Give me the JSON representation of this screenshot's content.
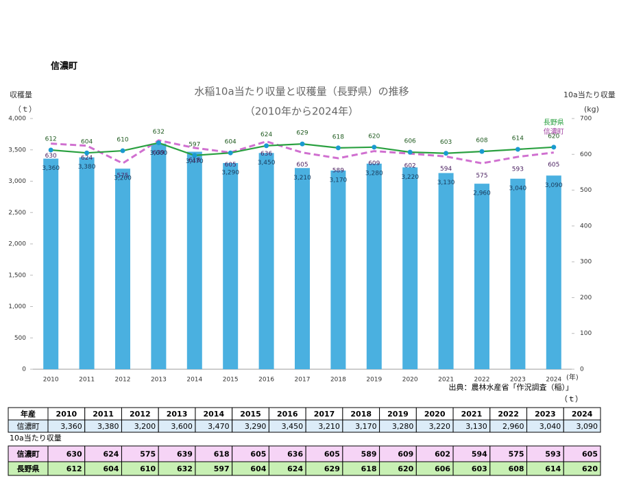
{
  "heading": "信濃町",
  "chart_data": {
    "type": "bar",
    "title": "水稲10a当たり収量と収穫量（長野県）の推移",
    "subtitle": "（2010年から2024年）",
    "y_label": "収穫量",
    "y_unit": "（ｔ）",
    "y2_label": "10a当たり収量",
    "y2_unit": "(kg)",
    "x_unit": "(年)",
    "source": "出典：農林水産省「作況調査（稲）」",
    "categories": [
      "2010",
      "2011",
      "2012",
      "2013",
      "2014",
      "2015",
      "2016",
      "2017",
      "2018",
      "2019",
      "2020",
      "2021",
      "2022",
      "2023",
      "2024"
    ],
    "series": [
      {
        "name": "信濃町",
        "type": "bar",
        "color": "#4ab0e0",
        "values": [
          3360,
          3380,
          3200,
          3600,
          3470,
          3290,
          3450,
          3210,
          3170,
          3280,
          3220,
          3130,
          2960,
          3040,
          3090
        ],
        "value_labels": [
          "3,360",
          "3,380",
          "3,200",
          "3,600",
          "3,470",
          "3,290",
          "3,450",
          "3,210",
          "3,170",
          "3,280",
          "3,220",
          "3,130",
          "2,960",
          "3,040",
          "3,090"
        ]
      },
      {
        "name": "信濃町",
        "type": "line",
        "axis": "y2",
        "color": "#d070d0",
        "dashed": true,
        "values": [
          630,
          624,
          575,
          639,
          618,
          605,
          636,
          605,
          589,
          609,
          602,
          594,
          575,
          593,
          605
        ]
      },
      {
        "name": "長野県",
        "type": "line",
        "axis": "y2",
        "color": "#2aa040",
        "marker_color": "#1a9ad0",
        "values": [
          612,
          604,
          610,
          632,
          597,
          604,
          624,
          629,
          618,
          620,
          606,
          603,
          608,
          614,
          620
        ]
      }
    ],
    "ylim": [
      0,
      4000
    ],
    "yticks": [
      0,
      500,
      {
        "value": 1000,
        "label": "1,000"
      },
      {
        "value": 1500,
        "label": "1,500"
      },
      {
        "value": 2000,
        "label": "2,000"
      },
      {
        "value": 2500,
        "label": "2,500"
      },
      {
        "value": 3000,
        "label": "3,000"
      },
      {
        "value": 3500,
        "label": "3,500"
      },
      {
        "value": 4000,
        "label": "4,000"
      }
    ],
    "y2lim": [
      0,
      700
    ],
    "y2ticks": [
      0,
      100,
      200,
      300,
      400,
      500,
      600,
      700
    ]
  },
  "table": {
    "unit": "（ｔ）",
    "header": "年産",
    "caption": "10a当たり収量"
  }
}
